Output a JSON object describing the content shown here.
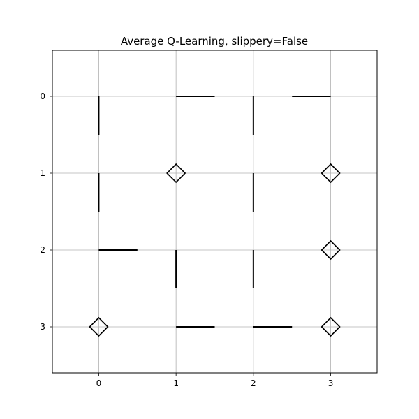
{
  "chart_data": {
    "type": "scatter",
    "title": "Average Q-Learning, slippery=False",
    "xlabel": "",
    "ylabel": "",
    "xlim": [
      -0.6,
      3.6
    ],
    "ylim": [
      3.6,
      -0.6
    ],
    "xticks": [
      "0",
      "1",
      "2",
      "3"
    ],
    "yticks": [
      "0",
      "1",
      "2",
      "3"
    ],
    "grid": true,
    "arrows": [
      {
        "x": 0,
        "y": 0,
        "dx": 0,
        "dy": 0.5
      },
      {
        "x": 1,
        "y": 0,
        "dx": 0.5,
        "dy": 0
      },
      {
        "x": 2,
        "y": 0,
        "dx": 0,
        "dy": 0.5
      },
      {
        "x": 3,
        "y": 0,
        "dx": -0.5,
        "dy": 0
      },
      {
        "x": 0,
        "y": 1,
        "dx": 0,
        "dy": 0.5
      },
      {
        "x": 2,
        "y": 1,
        "dx": 0,
        "dy": 0.5
      },
      {
        "x": 0,
        "y": 2,
        "dx": 0.5,
        "dy": 0
      },
      {
        "x": 1,
        "y": 2,
        "dx": 0,
        "dy": 0.5
      },
      {
        "x": 2,
        "y": 2,
        "dx": 0,
        "dy": 0.5
      },
      {
        "x": 1,
        "y": 3,
        "dx": 0.5,
        "dy": 0
      },
      {
        "x": 2,
        "y": 3,
        "dx": 0.5,
        "dy": 0
      }
    ],
    "diamonds": [
      {
        "x": 1,
        "y": 1
      },
      {
        "x": 3,
        "y": 1
      },
      {
        "x": 3,
        "y": 2
      },
      {
        "x": 0,
        "y": 3
      },
      {
        "x": 3,
        "y": 3
      }
    ]
  }
}
